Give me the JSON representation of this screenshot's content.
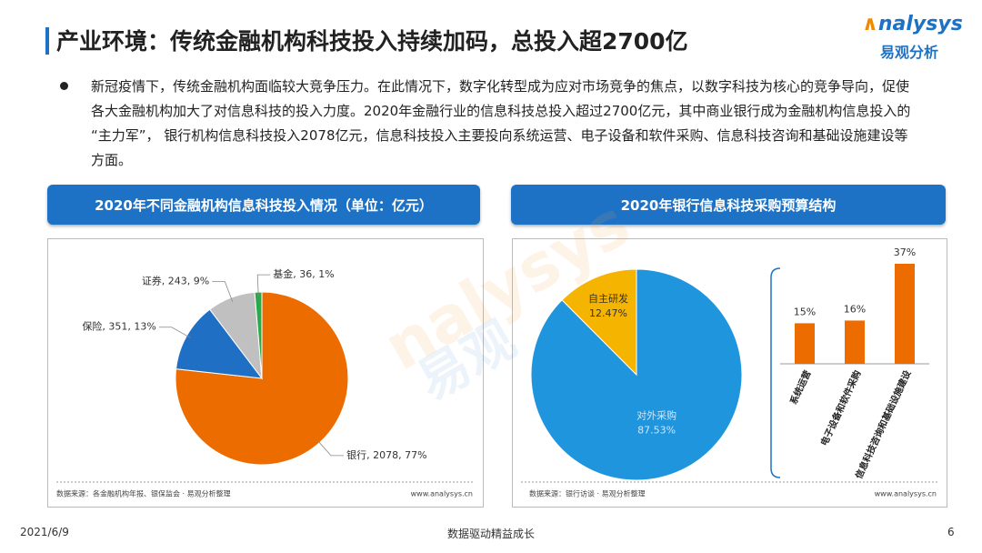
{
  "header": {
    "title": "产业环境：传统金融机构科技投入持续加码，总投入超2700亿",
    "logo": "nalysys",
    "logo_sub": "易观分析"
  },
  "bullet": "新冠疫情下，传统金融机构面临较大竞争压力。在此情况下，数字化转型成为应对市场竞争的焦点，以数字科技为核心的竞争导向，促使各大金融机构加大了对信息科技的投入力度。2020年金融行业的信息科技总投入超过2700亿元，其中商业银行成为金融机构信息投入的“主力军”， 银行机构信息科技投入2078亿元，信息科技投入主要投向系统运营、电子设备和软件采购、信息科技咨询和基础设施建设等方面。",
  "watermark": {
    "brand": "nalysys",
    "cn": "易观"
  },
  "chart_data": [
    {
      "type": "pie",
      "title": "2020年不同金融机构信息科技投入情况（单位：亿元）",
      "values": [
        2078,
        351,
        243,
        36
      ],
      "value_labels": [
        "银行, 2078, 77%",
        "保险, 351, 13%",
        "证券, 243, 9%",
        "基金, 36, 1%"
      ],
      "colors": [
        "#ed6c00",
        "#1f6fc5",
        "#c0c0c0",
        "#2aa84a"
      ],
      "source": "数据来源：各金融机构年报、银保监会 · 易观分析整理",
      "website": "www.analysys.cn"
    },
    {
      "type": "pie",
      "title": "2020年银行信息科技采购预算结构",
      "categories": [
        "对外采购",
        "自主研发"
      ],
      "values": [
        87.53,
        12.47
      ],
      "value_labels": [
        "87.53%",
        "12.47%"
      ],
      "colors": [
        "#1f95dd",
        "#f5b400"
      ],
      "source": "数据来源：银行访谈 · 易观分析整理",
      "website": "www.analysys.cn"
    },
    {
      "type": "bar",
      "categories": [
        "系统运营",
        "电子设备和软件采购",
        "信息科技咨询和基础设施建设"
      ],
      "values": [
        15,
        16,
        37
      ],
      "value_labels": [
        "15%",
        "16%",
        "37%"
      ],
      "color": "#ed6c00"
    }
  ],
  "footer": {
    "date": "2021/6/9",
    "slogan": "数据驱动精益成长",
    "page": 6
  }
}
